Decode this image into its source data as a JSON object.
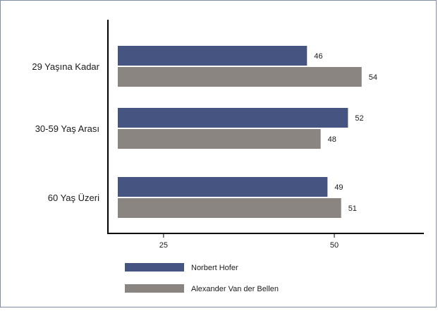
{
  "chart_data": {
    "type": "bar",
    "orientation": "horizontal",
    "title": "",
    "xlabel": "",
    "ylabel": "",
    "categories": [
      "29 Yaşına Kadar",
      "30-59 Yaş Arası",
      "60 Yaş Üzeri"
    ],
    "series": [
      {
        "name": "Norbert Hofer",
        "values": [
          46,
          52,
          49
        ],
        "color": "#465482"
      },
      {
        "name": "Alexander Van der Bellen",
        "values": [
          54,
          48,
          51
        ],
        "color": "#8a8581"
      }
    ],
    "x_ticks": [
      25,
      50
    ],
    "xlim": [
      18.3,
      62.7
    ],
    "grid": false,
    "legend_position": "bottom-left",
    "data_labels": true
  }
}
